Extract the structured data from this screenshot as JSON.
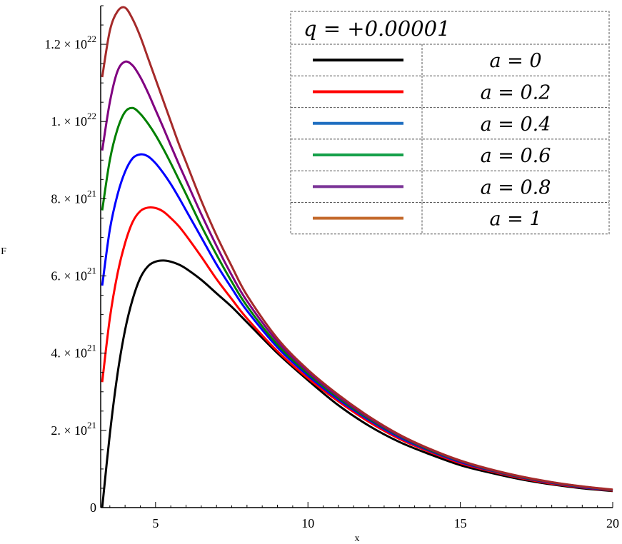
{
  "chart_data": {
    "type": "line",
    "title": "",
    "xlabel": "x",
    "ylabel": "F",
    "xlim": [
      3.2,
      20
    ],
    "ylim": [
      0,
      1.3e+22
    ],
    "grid": false,
    "x_ticks": [
      {
        "value": 5,
        "label": "5"
      },
      {
        "value": 10,
        "label": "10"
      },
      {
        "value": 15,
        "label": "15"
      },
      {
        "value": 20,
        "label": "20"
      }
    ],
    "y_ticks": [
      {
        "value": 0,
        "label": "0",
        "mantissa": "",
        "exponent": ""
      },
      {
        "value": 2e+21,
        "label": "2. × 10^21",
        "mantissa": "2. × 10",
        "exponent": "21"
      },
      {
        "value": 4e+21,
        "label": "4. × 10^21",
        "mantissa": "4. × 10",
        "exponent": "21"
      },
      {
        "value": 6e+21,
        "label": "6. × 10^21",
        "mantissa": "6. × 10",
        "exponent": "21"
      },
      {
        "value": 8e+21,
        "label": "8. × 10^21",
        "mantissa": "8. × 10",
        "exponent": "21"
      },
      {
        "value": 1e+22,
        "label": "1. × 10^22",
        "mantissa": "1. × 10",
        "exponent": "22"
      },
      {
        "value": 1.2e+22,
        "label": "1.2 × 10^22",
        "mantissa": "1.2 × 10",
        "exponent": "22"
      }
    ],
    "legend": {
      "placement": "top-right",
      "title": "q = +0.00001"
    },
    "series": [
      {
        "name": "a = 0",
        "color": "#000000",
        "x": [
          3.25,
          3.5,
          3.75,
          4.0,
          4.25,
          4.5,
          4.75,
          5.0,
          5.25,
          5.5,
          5.75,
          6.0,
          6.5,
          7.0,
          7.5,
          8.0,
          9.0,
          10.0,
          11.0,
          12.0,
          13.0,
          14.0,
          15.0,
          16.0,
          17.0,
          18.0,
          19.0,
          20.0
        ],
        "values": [
          0,
          1.9e+21,
          3.45e+21,
          4.6e+21,
          5.4e+21,
          5.95e+21,
          6.25e+21,
          6.37e+21,
          6.4e+21,
          6.37e+21,
          6.3e+21,
          6.19e+21,
          5.9e+21,
          5.55e+21,
          5.2e+21,
          4.8e+21,
          4e+21,
          3.3e+21,
          2.65e+21,
          2.12e+21,
          1.7e+21,
          1.38e+21,
          1.1e+21,
          9e+20,
          7.3e+20,
          6e+20,
          5e+20,
          4.3e+20
        ]
      },
      {
        "name": "a = 0.2",
        "color": "#ff0000",
        "x": [
          3.25,
          3.5,
          3.75,
          4.0,
          4.25,
          4.5,
          4.75,
          5.0,
          5.25,
          5.5,
          5.75,
          6.0,
          6.5,
          7.0,
          7.5,
          8.0,
          9.0,
          10.0,
          11.0,
          12.0,
          13.0,
          14.0,
          15.0,
          16.0,
          17.0,
          18.0,
          19.0,
          20.0
        ],
        "values": [
          3.25e+21,
          4.9e+21,
          6.05e+21,
          6.85e+21,
          7.4e+21,
          7.68e+21,
          7.77e+21,
          7.76e+21,
          7.67e+21,
          7.5e+21,
          7.3e+21,
          7.05e+21,
          6.5e+21,
          5.92e+21,
          5.4e+21,
          4.9e+21,
          4.05e+21,
          3.35e+21,
          2.75e+21,
          2.22e+21,
          1.78e+21,
          1.44e+21,
          1.15e+21,
          9.4e+20,
          7.6e+20,
          6.2e+20,
          5.2e+20,
          4.4e+20
        ]
      },
      {
        "name": "a = 0.4",
        "color": "#0000ff",
        "x": [
          3.25,
          3.5,
          3.75,
          4.0,
          4.25,
          4.5,
          4.75,
          5.0,
          5.25,
          5.5,
          5.75,
          6.0,
          6.5,
          7.0,
          7.5,
          8.0,
          9.0,
          10.0,
          11.0,
          12.0,
          13.0,
          14.0,
          15.0,
          16.0,
          17.0,
          18.0,
          19.0,
          20.0
        ],
        "values": [
          5.75e+21,
          7.2e+21,
          8.1e+21,
          8.7e+21,
          9.05e+21,
          9.15e+21,
          9.1e+21,
          8.92e+21,
          8.67e+21,
          8.38e+21,
          8.05e+21,
          7.7e+21,
          7e+21,
          6.3e+21,
          5.68e+21,
          5.1e+21,
          4.15e+21,
          3.42e+21,
          2.8e+21,
          2.27e+21,
          1.82e+21,
          1.47e+21,
          1.18e+21,
          9.6e+20,
          7.8e+20,
          6.4e+20,
          5.3e+20,
          4.5e+20
        ]
      },
      {
        "name": "a = 0.6",
        "color": "#008000",
        "x": [
          3.25,
          3.5,
          3.75,
          4.0,
          4.25,
          4.5,
          4.75,
          5.0,
          5.25,
          5.5,
          5.75,
          6.0,
          6.5,
          7.0,
          7.5,
          8.0,
          9.0,
          10.0,
          11.0,
          12.0,
          13.0,
          14.0,
          15.0,
          16.0,
          17.0,
          18.0,
          19.0,
          20.0
        ],
        "values": [
          7.7e+21,
          9e+21,
          9.8e+21,
          1.025e+22,
          1.035e+22,
          1.02e+22,
          9.95e+21,
          9.65e+21,
          9.3e+21,
          8.92e+21,
          8.52e+21,
          8.12e+21,
          7.3e+21,
          6.55e+21,
          5.85e+21,
          5.22e+21,
          4.22e+21,
          3.47e+21,
          2.84e+21,
          2.3e+21,
          1.85e+21,
          1.49e+21,
          1.2e+21,
          9.7e+20,
          7.9e+20,
          6.5e+20,
          5.4e+20,
          4.55e+20
        ]
      },
      {
        "name": "a = 0.8",
        "color": "#800080",
        "x": [
          3.25,
          3.5,
          3.75,
          4.0,
          4.25,
          4.5,
          4.75,
          5.0,
          5.25,
          5.5,
          5.75,
          6.0,
          6.5,
          7.0,
          7.5,
          8.0,
          9.0,
          10.0,
          11.0,
          12.0,
          13.0,
          14.0,
          15.0,
          16.0,
          17.0,
          18.0,
          19.0,
          20.0
        ],
        "values": [
          9.25e+21,
          1.05e+22,
          1.13e+22,
          1.155e+22,
          1.145e+22,
          1.115e+22,
          1.075e+22,
          1.03e+22,
          9.85e+21,
          9.38e+21,
          8.92e+21,
          8.48e+21,
          7.6e+21,
          6.78e+21,
          6.02e+21,
          5.35e+21,
          4.3e+21,
          3.52e+21,
          2.88e+21,
          2.33e+21,
          1.87e+21,
          1.51e+21,
          1.21e+21,
          9.8e+20,
          8e+20,
          6.55e+20,
          5.45e+20,
          4.6e+20
        ]
      },
      {
        "name": "a = 1",
        "color": "#a52a2a",
        "x": [
          3.25,
          3.5,
          3.75,
          4.0,
          4.25,
          4.5,
          4.75,
          5.0,
          5.25,
          5.5,
          5.75,
          6.0,
          6.5,
          7.0,
          7.5,
          8.0,
          9.0,
          10.0,
          11.0,
          12.0,
          13.0,
          14.0,
          15.0,
          16.0,
          17.0,
          18.0,
          19.0,
          20.0
        ],
        "values": [
          1.115e+22,
          1.235e+22,
          1.285e+22,
          1.295e+22,
          1.265e+22,
          1.22e+22,
          1.165e+22,
          1.11e+22,
          1.055e+22,
          1e+22,
          9.45e+21,
          8.95e+21,
          7.95e+21,
          7.05e+21,
          6.25e+21,
          5.5e+21,
          4.38e+21,
          3.57e+21,
          2.92e+21,
          2.36e+21,
          1.89e+21,
          1.52e+21,
          1.22e+21,
          9.9e+20,
          8.05e+20,
          6.6e+20,
          5.5e+20,
          4.65e+20
        ]
      }
    ],
    "legend_entries": [
      {
        "label": "a = 0",
        "color": "#000000"
      },
      {
        "label": "a = 0.2",
        "color": "#ff0000"
      },
      {
        "label": "a = 0.4",
        "color": "#1f6fc1"
      },
      {
        "label": "a = 0.6",
        "color": "#16a04a"
      },
      {
        "label": "a = 0.8",
        "color": "#7a3396"
      },
      {
        "label": "a = 1",
        "color": "#c46a2c"
      }
    ]
  }
}
